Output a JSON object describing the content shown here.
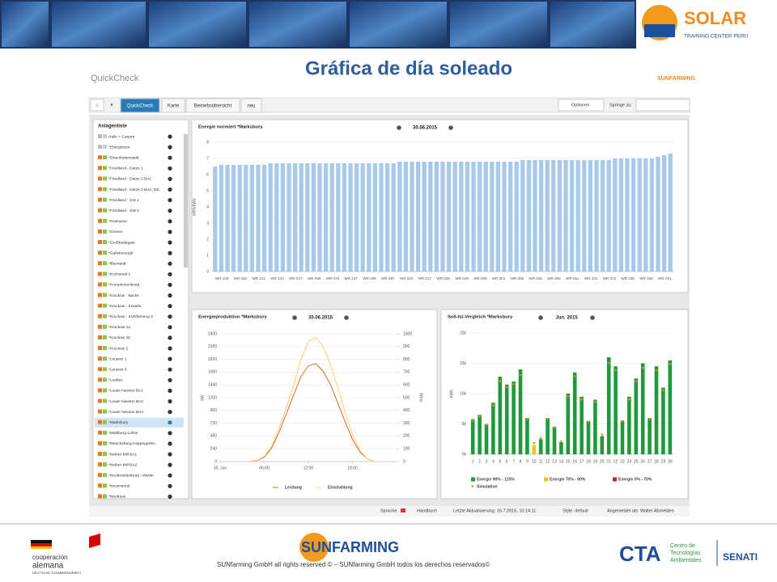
{
  "header": {
    "brand": "SOLAR",
    "brand_sub": "TRAINING CENTER PERU",
    "title": "Gráfica de día soleado"
  },
  "app": {
    "name": "QuickCheck",
    "logo": "SUNFARMING",
    "tabs": [
      "QuickCheck",
      "Karte",
      "Betriebsübersicht",
      "neu"
    ],
    "options": "Optionen",
    "jump": "Springe zu:",
    "sidebar_title": "Anlagenliste",
    "plants": [
      "Halle + Carport",
      "*Ebergötzen",
      "*Eisenhüttenstadt",
      "*Friedland - Datze 1",
      "*Friedland - Datze 2 BA1",
      "*Friedland - Datze 2 BA2_MC",
      "*Friedland - SW 1",
      "*Friedland - SW 2",
      "*Grampow",
      "*Greven",
      "*Großbadegast",
      "*Guilsborough",
      "*Ilberstedt",
      "*Kochstedt 1",
      "*Kronprinzenkoog",
      "*Kruckow - Backs",
      "*Kruckow - Kosalis",
      "*Kruckow - SUNfarming 3",
      "*Kruckow 1a",
      "*Kruckow 1b",
      "*Kruckow 2",
      "*Leussin 1",
      "*Leussin 3",
      "*Lodden",
      "*Lower Newton BA1",
      "*Lower Newton BA2",
      "*Lower Newton BA3",
      "*Marksbury",
      "*Mühlberg-Lohse",
      "*Müncheberg-Hoppegarten",
      "*Nether Mill BA1",
      "*Nether Mill BA2",
      "*Neubrandenburg - Wettin",
      "*Neuensund",
      "*Neuhaus"
    ]
  },
  "status": [
    "Sprache",
    "Handbuch",
    "Letzte Aktualisierung: 16.7.2015, 10:14:11",
    "Style: default",
    "Angemeldet als: Walter Abmelden"
  ],
  "footer": {
    "coop": "cooperación",
    "coop2": "alemana",
    "coop3": "DEUTSCHE ZUSAMMENARBEIT",
    "sunfarming": "SUNFARMING",
    "cta": "CTA",
    "cta_text": [
      "Centro de",
      "Tecnologías",
      "Ambientales"
    ],
    "senati": "SENATI",
    "copyright": "SUNfarming GmbH all rights reserved © – SUNfarming GmbH todos los derechos reservados©"
  },
  "chart_data": [
    {
      "type": "bar",
      "title": "Energie normiert *Marksbury",
      "date": "30.06.2015",
      "ylabel": "kWh/kWp",
      "color": "#a9c9ea",
      "grid": true,
      "ylim": [
        0,
        8
      ],
      "yticks": [
        0,
        1,
        2,
        3,
        4,
        5,
        6,
        7,
        8
      ],
      "categories": [
        "WR 130",
        null,
        null,
        "WR 082",
        null,
        null,
        "WR 121",
        null,
        null,
        "WR 124",
        null,
        null,
        "WR 047",
        null,
        null,
        "WR 059",
        null,
        null,
        "WR 078",
        null,
        null,
        "WR 127",
        null,
        null,
        "WR 005",
        null,
        null,
        "WR 087",
        null,
        null,
        "WR 020",
        null,
        null,
        "WR 017",
        null,
        null,
        "WR 025",
        null,
        null,
        "WR 049",
        null,
        null,
        "WR 008",
        null,
        null,
        "WR 001",
        null,
        null,
        "WR 065",
        null,
        null,
        "WR 028",
        null,
        null,
        "WR 066",
        null,
        null,
        "WR 051",
        null,
        null,
        "WR 102",
        null,
        null,
        "WR 072",
        null,
        null,
        "WR 030",
        null,
        null,
        "WR 036",
        null,
        null,
        "WR 031",
        null,
        null
      ],
      "values": [
        6.5,
        6.6,
        6.6,
        6.6,
        6.6,
        6.6,
        6.6,
        6.6,
        6.6,
        6.7,
        6.7,
        6.7,
        6.7,
        6.7,
        6.7,
        6.7,
        6.7,
        6.7,
        6.7,
        6.7,
        6.7,
        6.7,
        6.7,
        6.7,
        6.7,
        6.7,
        6.7,
        6.7,
        6.7,
        6.7,
        6.8,
        6.8,
        6.8,
        6.8,
        6.8,
        6.8,
        6.8,
        6.8,
        6.8,
        6.8,
        6.8,
        6.8,
        6.8,
        6.8,
        6.8,
        6.8,
        6.8,
        6.8,
        6.8,
        6.8,
        6.9,
        6.9,
        6.9,
        6.9,
        6.9,
        6.9,
        6.9,
        6.9,
        6.9,
        6.9,
        6.9,
        6.9,
        6.9,
        6.9,
        6.9,
        7.0,
        7.0,
        7.0,
        7.0,
        7.0,
        7.0,
        7.0,
        7.1,
        7.2,
        7.3
      ]
    },
    {
      "type": "line",
      "title": "Energieproduktion *Marksbury",
      "date": "30.06.2015",
      "ylabel": "kW",
      "y2label": "W/m²",
      "grid": true,
      "legend": "bottom",
      "xlim": [
        0,
        24
      ],
      "xticks": [
        {
          "value": 0,
          "label": "30. Jun"
        },
        {
          "value": 6,
          "label": "06:00"
        },
        {
          "value": 12,
          "label": "12:00"
        },
        {
          "value": 18,
          "label": "18:00"
        }
      ],
      "ylim": [
        0,
        2400
      ],
      "yticks": [
        0,
        240,
        480,
        720,
        960,
        1200,
        1440,
        1680,
        1920,
        2160,
        2400
      ],
      "y2lim": [
        0,
        1000
      ],
      "y2ticks": [
        0,
        100,
        200,
        300,
        400,
        500,
        600,
        700,
        800,
        900,
        1000
      ],
      "x": [
        4,
        5,
        6,
        7,
        8,
        9,
        10,
        11,
        12,
        13,
        14,
        15,
        16,
        17,
        18,
        19,
        20,
        21
      ],
      "series": [
        {
          "name": "Leistung",
          "color": "#e0652b",
          "values": [
            0,
            20,
            80,
            250,
            550,
            900,
            1250,
            1600,
            1800,
            1840,
            1700,
            1450,
            1100,
            750,
            420,
            180,
            50,
            0
          ]
        },
        {
          "name": "Einstrahlung",
          "color": "#f3d36b",
          "axis": "y2",
          "values": [
            0,
            10,
            40,
            120,
            260,
            420,
            600,
            800,
            940,
            975,
            900,
            760,
            580,
            390,
            210,
            90,
            20,
            0
          ]
        }
      ]
    },
    {
      "type": "bar",
      "title": "Soll-Ist-Vergleich *Marksbury",
      "date": "Jun. 2015",
      "ylabel": "kWh",
      "grid": true,
      "legend": "bottom",
      "ylim": [
        0,
        20000
      ],
      "yticks": [
        {
          "value": 0,
          "label": "0k"
        },
        {
          "value": 5000,
          "label": "5k"
        },
        {
          "value": 10000,
          "label": "10k"
        },
        {
          "value": 15000,
          "label": "15k"
        },
        {
          "value": 20000,
          "label": "20k"
        }
      ],
      "categories": [
        "1",
        "2",
        "3",
        "4",
        "5",
        "6",
        "7",
        "8",
        "9",
        "10",
        "11",
        "12",
        "13",
        "14",
        "15",
        "16",
        "17",
        "18",
        "19",
        "20",
        "21",
        "22",
        "23",
        "24",
        "25",
        "26",
        "27",
        "28",
        "29",
        "30"
      ],
      "series": [
        {
          "name": "Energie 90% - 115%",
          "color": "#1e9a3c",
          "values": [
            5800,
            6500,
            5000,
            8500,
            12800,
            11500,
            12000,
            14000,
            6000,
            null,
            2500,
            6000,
            4500,
            2000,
            10000,
            13500,
            9500,
            5500,
            9000,
            3000,
            16000,
            14500,
            5500,
            9500,
            12500,
            15000,
            6000,
            14500,
            11000,
            15500
          ]
        },
        {
          "name": "Energie 70% - 90%",
          "color": "#f0c419",
          "values": [
            null,
            null,
            null,
            null,
            null,
            null,
            null,
            null,
            null,
            1500,
            null,
            null,
            null,
            null,
            null,
            null,
            null,
            null,
            null,
            null,
            null,
            null,
            null,
            null,
            null,
            null,
            null,
            null,
            null,
            null
          ]
        },
        {
          "name": "Energie 0% - 70%",
          "color": "#c8202a",
          "values": [
            null,
            null,
            null,
            null,
            null,
            null,
            null,
            null,
            null,
            null,
            null,
            null,
            null,
            null,
            null,
            null,
            null,
            null,
            null,
            null,
            null,
            null,
            null,
            null,
            null,
            null,
            null,
            null,
            null,
            null
          ]
        },
        {
          "name": "Simulation",
          "color": "#f08a1c",
          "marker": "triangle",
          "values": [
            5500,
            6200,
            4800,
            8000,
            12000,
            11000,
            11500,
            13000,
            5800,
            1800,
            2600,
            5800,
            4400,
            2100,
            9500,
            12800,
            9000,
            5300,
            8600,
            3200,
            15000,
            13800,
            5400,
            9000,
            12000,
            14200,
            5800,
            13800,
            10500,
            14800
          ]
        }
      ]
    }
  ]
}
